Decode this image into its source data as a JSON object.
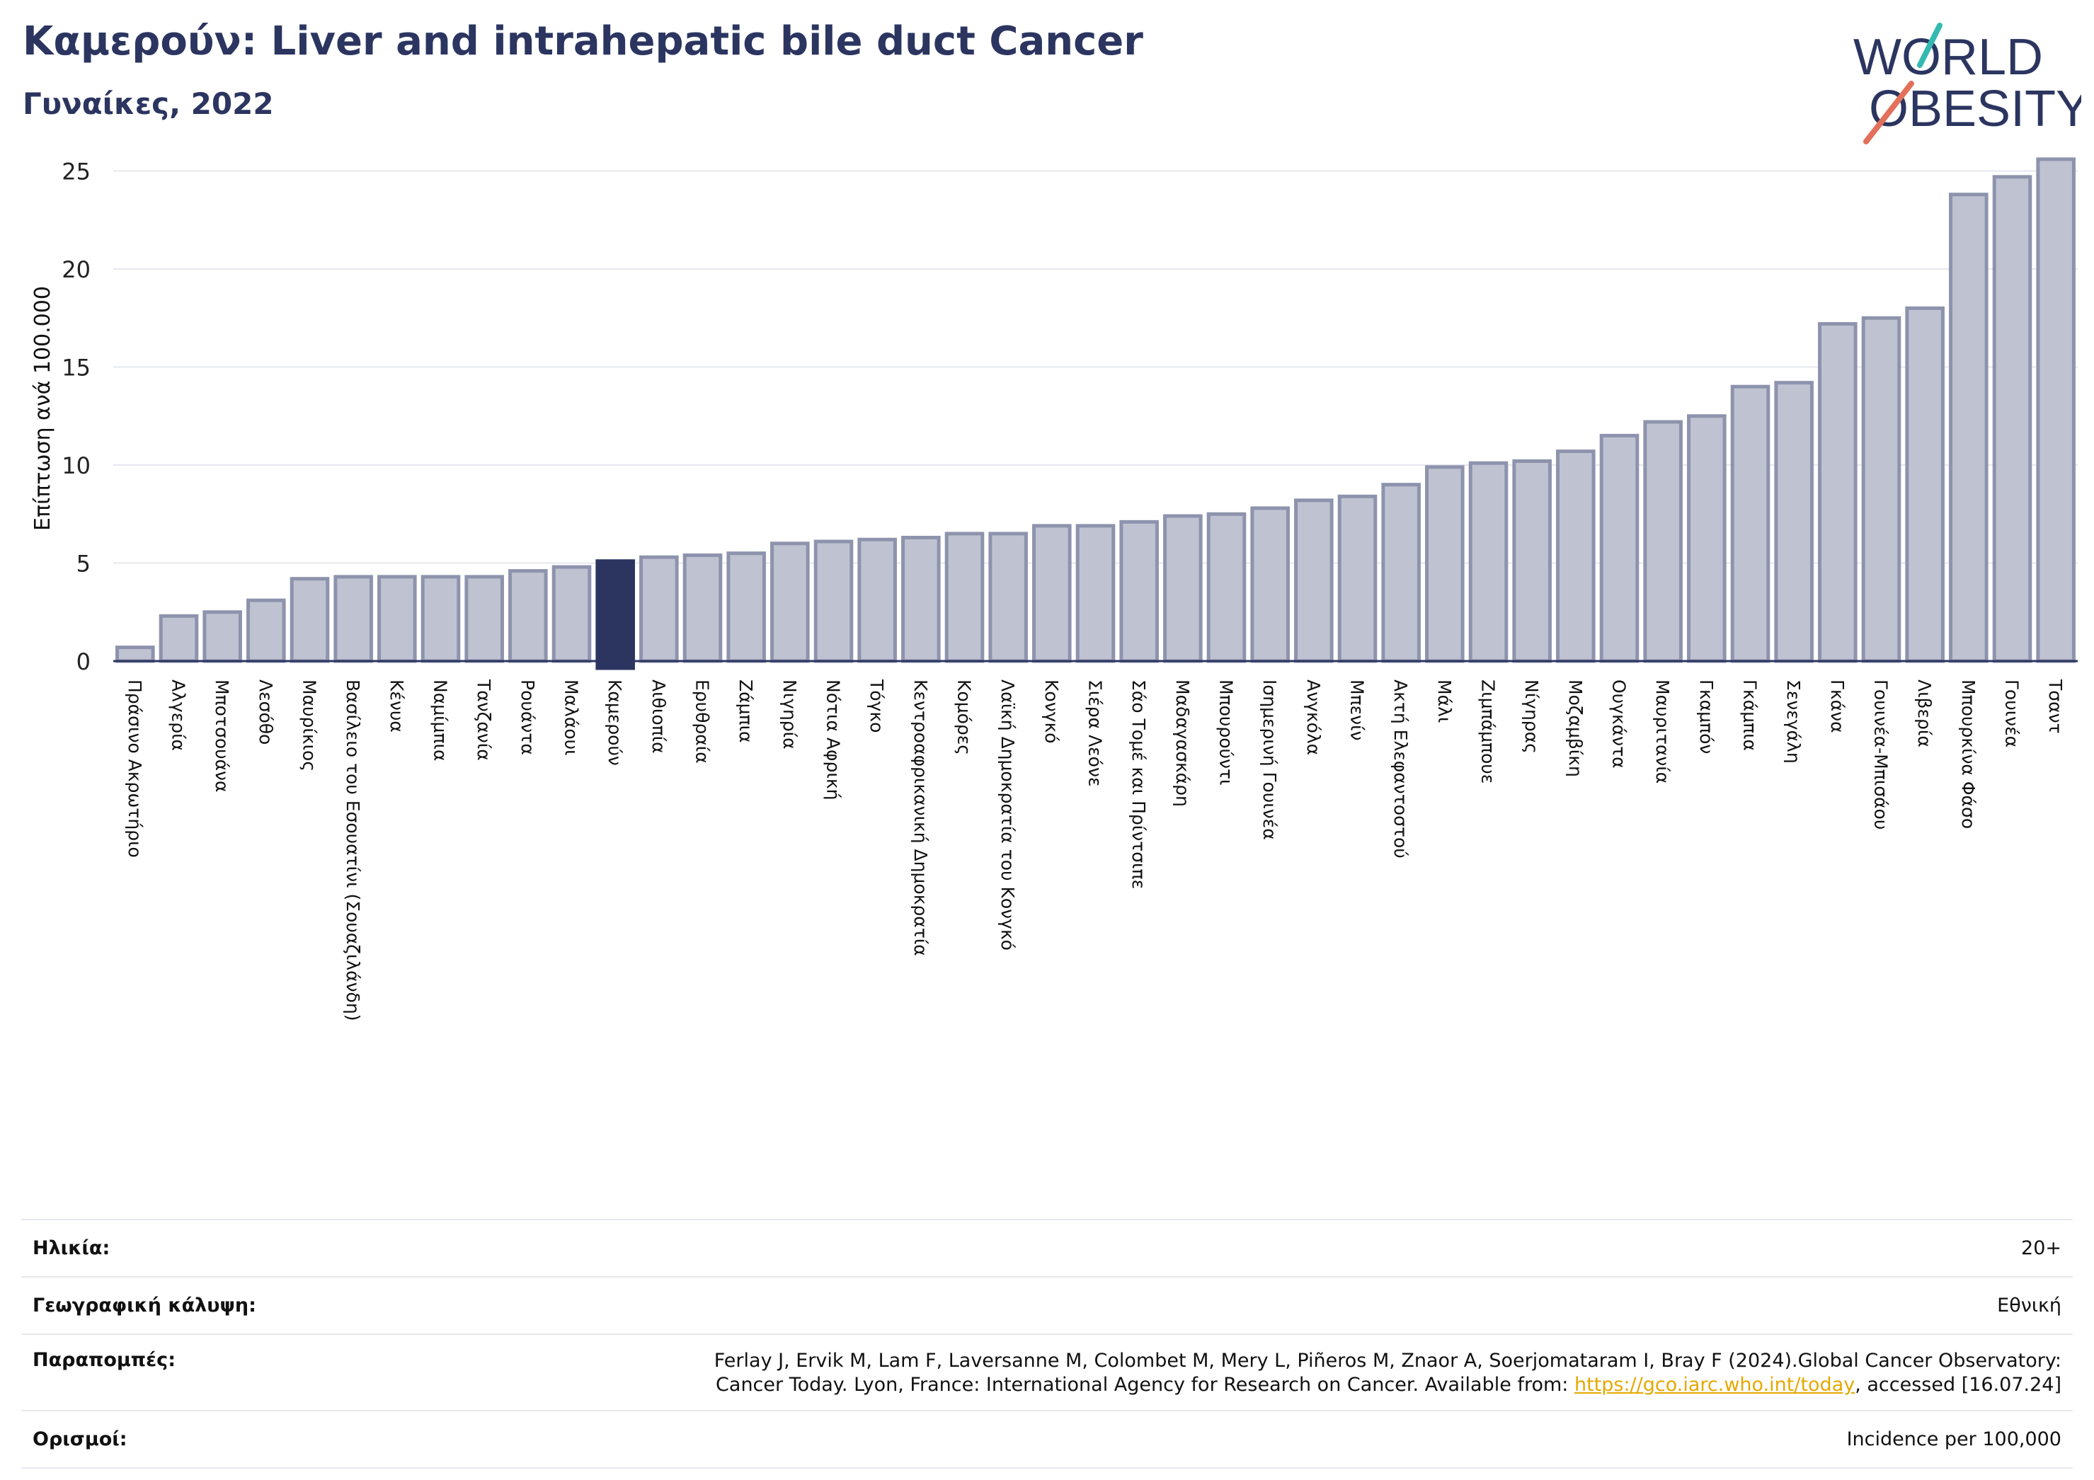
{
  "header": {
    "title": "Καμερούν: Liver and intrahepatic bile duct Cancer",
    "subtitle": "Γυναίκες, 2022"
  },
  "logo": {
    "line1": "WORLD",
    "line2": "OBESITY"
  },
  "colors": {
    "title": "#2b3560",
    "bar": "#bfc3d1",
    "bar_edge": "#8e93ad",
    "highlight": "#2b3560",
    "link": "#e6a800"
  },
  "chart_data": {
    "type": "bar",
    "ylabel": "Επίπτωση ανά 100.000",
    "ylim": [
      0,
      26.5
    ],
    "yticks": [
      0,
      5,
      10,
      15,
      20,
      25
    ],
    "grid": true,
    "highlight": "Καμερούν",
    "categories": [
      "Πράσινο Ακρωτήριο",
      "Αλγερία",
      "Μποτσουάνα",
      "Λεσόθο",
      "Μαυρίκιος",
      "Βασίλειο του Εσουατίνι (Σουαζιλάνδη)",
      "Κένυα",
      "Ναμίμπια",
      "Τανζανία",
      "Ρουάντα",
      "Μαλάουι",
      "Καμερούν",
      "Αιθιοπία",
      "Ερυθραία",
      "Ζάμπια",
      "Νιγηρία",
      "Νότια Αφρική",
      "Τόγκο",
      "Κεντροαφρικανική Δημοκρατία",
      "Κομόρες",
      "Λαϊκή Δημοκρατία του Κονγκό",
      "Κονγκό",
      "Σιέρα Λεόνε",
      "Σάο Τομέ και Πρίντσιπε",
      "Μαδαγασκάρη",
      "Μπουρούντι",
      "Ισημερινή Γουινέα",
      "Ανγκόλα",
      "Μπενίν",
      "Ακτή Ελεφαντοστού",
      "Μάλι",
      "Ζιμπάμπουε",
      "Νίγηρας",
      "Μοζαμβίκη",
      "Ουγκάντα",
      "Μαυριτανία",
      "Γκαμπόν",
      "Γκάμπια",
      "Σενεγάλη",
      "Γκάνα",
      "Γουινέα-Μπισάου",
      "Λιβερία",
      "Μπουρκίνα Φάσο",
      "Γουινέα",
      "Τσαντ"
    ],
    "values": [
      0.7,
      2.3,
      2.5,
      3.1,
      4.2,
      4.3,
      4.3,
      4.3,
      4.3,
      4.6,
      4.8,
      5.1,
      5.3,
      5.4,
      5.5,
      6.0,
      6.1,
      6.2,
      6.3,
      6.5,
      6.5,
      6.9,
      6.9,
      7.1,
      7.4,
      7.5,
      7.8,
      8.2,
      8.4,
      9.0,
      9.9,
      10.1,
      10.2,
      10.7,
      11.5,
      12.2,
      12.5,
      14.0,
      14.2,
      17.2,
      17.5,
      18.0,
      23.8,
      24.7,
      25.6
    ]
  },
  "info": {
    "age_label": "Ηλικία:",
    "age_value": "20+",
    "coverage_label": "Γεωγραφική κάλυψη:",
    "coverage_value": "Εθνική",
    "refs_label": "Παραπομπές:",
    "refs_line1": "Ferlay J, Ervik M, Lam F, Laversanne M, Colombet M, Mery L, Piñeros M, Znaor A, Soerjomataram I, Bray F (2024).Global Cancer Observatory:",
    "refs_line2_pre": "Cancer Today. Lyon, France: International Agency for Research on Cancer. Available from: ",
    "refs_link": "https://gco.iarc.who.int/today",
    "refs_line2_post": ", accessed [16.07.24]",
    "defs_label": "Ορισμοί:",
    "defs_value": "Incidence per 100,000"
  }
}
